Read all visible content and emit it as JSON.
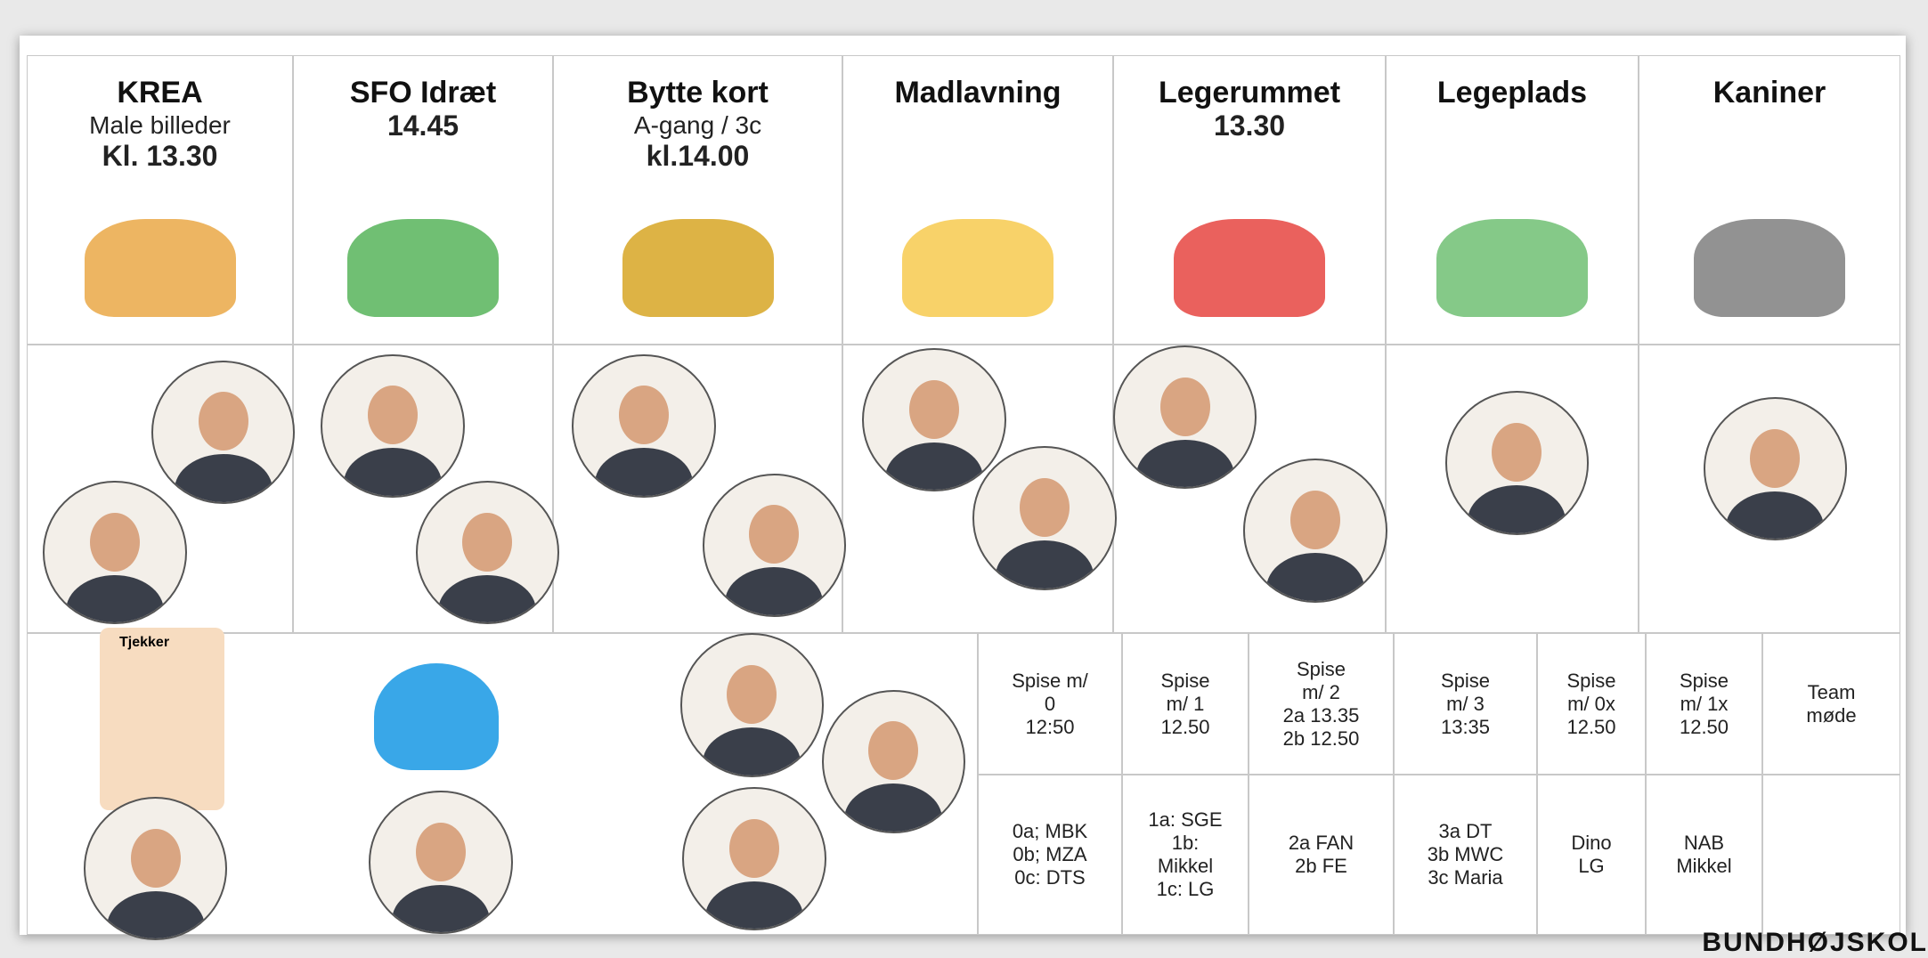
{
  "activities": [
    {
      "title": "KREA",
      "lines": [
        "Male billeder",
        "Kl. 13.30"
      ]
    },
    {
      "title": "SFO Idræt",
      "lines": [
        "14.45"
      ]
    },
    {
      "title": "Bytte kort",
      "lines": [
        "A-gang / 3c",
        "kl.14.00"
      ]
    },
    {
      "title": "Madlavning",
      "lines": []
    },
    {
      "title": "Legerummet",
      "lines": [
        "13.30"
      ]
    },
    {
      "title": "Legeplads",
      "lines": []
    },
    {
      "title": "Kaniner",
      "lines": []
    }
  ],
  "checker_label": "Tjekker",
  "table": {
    "rows": [
      [
        [
          "Spise m/",
          "0",
          "12:50"
        ],
        [
          "Spise",
          "m/ 1",
          "12.50"
        ],
        [
          "Spise",
          "m/ 2",
          "2a 13.35",
          "2b 12.50"
        ],
        [
          "Spise",
          "m/ 3",
          "13:35"
        ],
        [
          "Spise",
          "m/ 0x",
          "12.50"
        ],
        [
          "Spise",
          "m/ 1x",
          "12.50"
        ],
        [
          "Team",
          "møde"
        ]
      ],
      [
        [
          "0a; MBK",
          "0b; MZA",
          "0c: DTS"
        ],
        [
          "1a: SGE",
          "1b:",
          "Mikkel",
          "1c: LG"
        ],
        [
          "2a FAN",
          "2b FE"
        ],
        [
          "3a DT",
          "3b MWC",
          "3c Maria"
        ],
        [
          "Dino",
          "LG"
        ],
        [
          "NAB",
          "Mikkel"
        ]
      ]
    ]
  },
  "footer": "BUNDHØJSKOL"
}
